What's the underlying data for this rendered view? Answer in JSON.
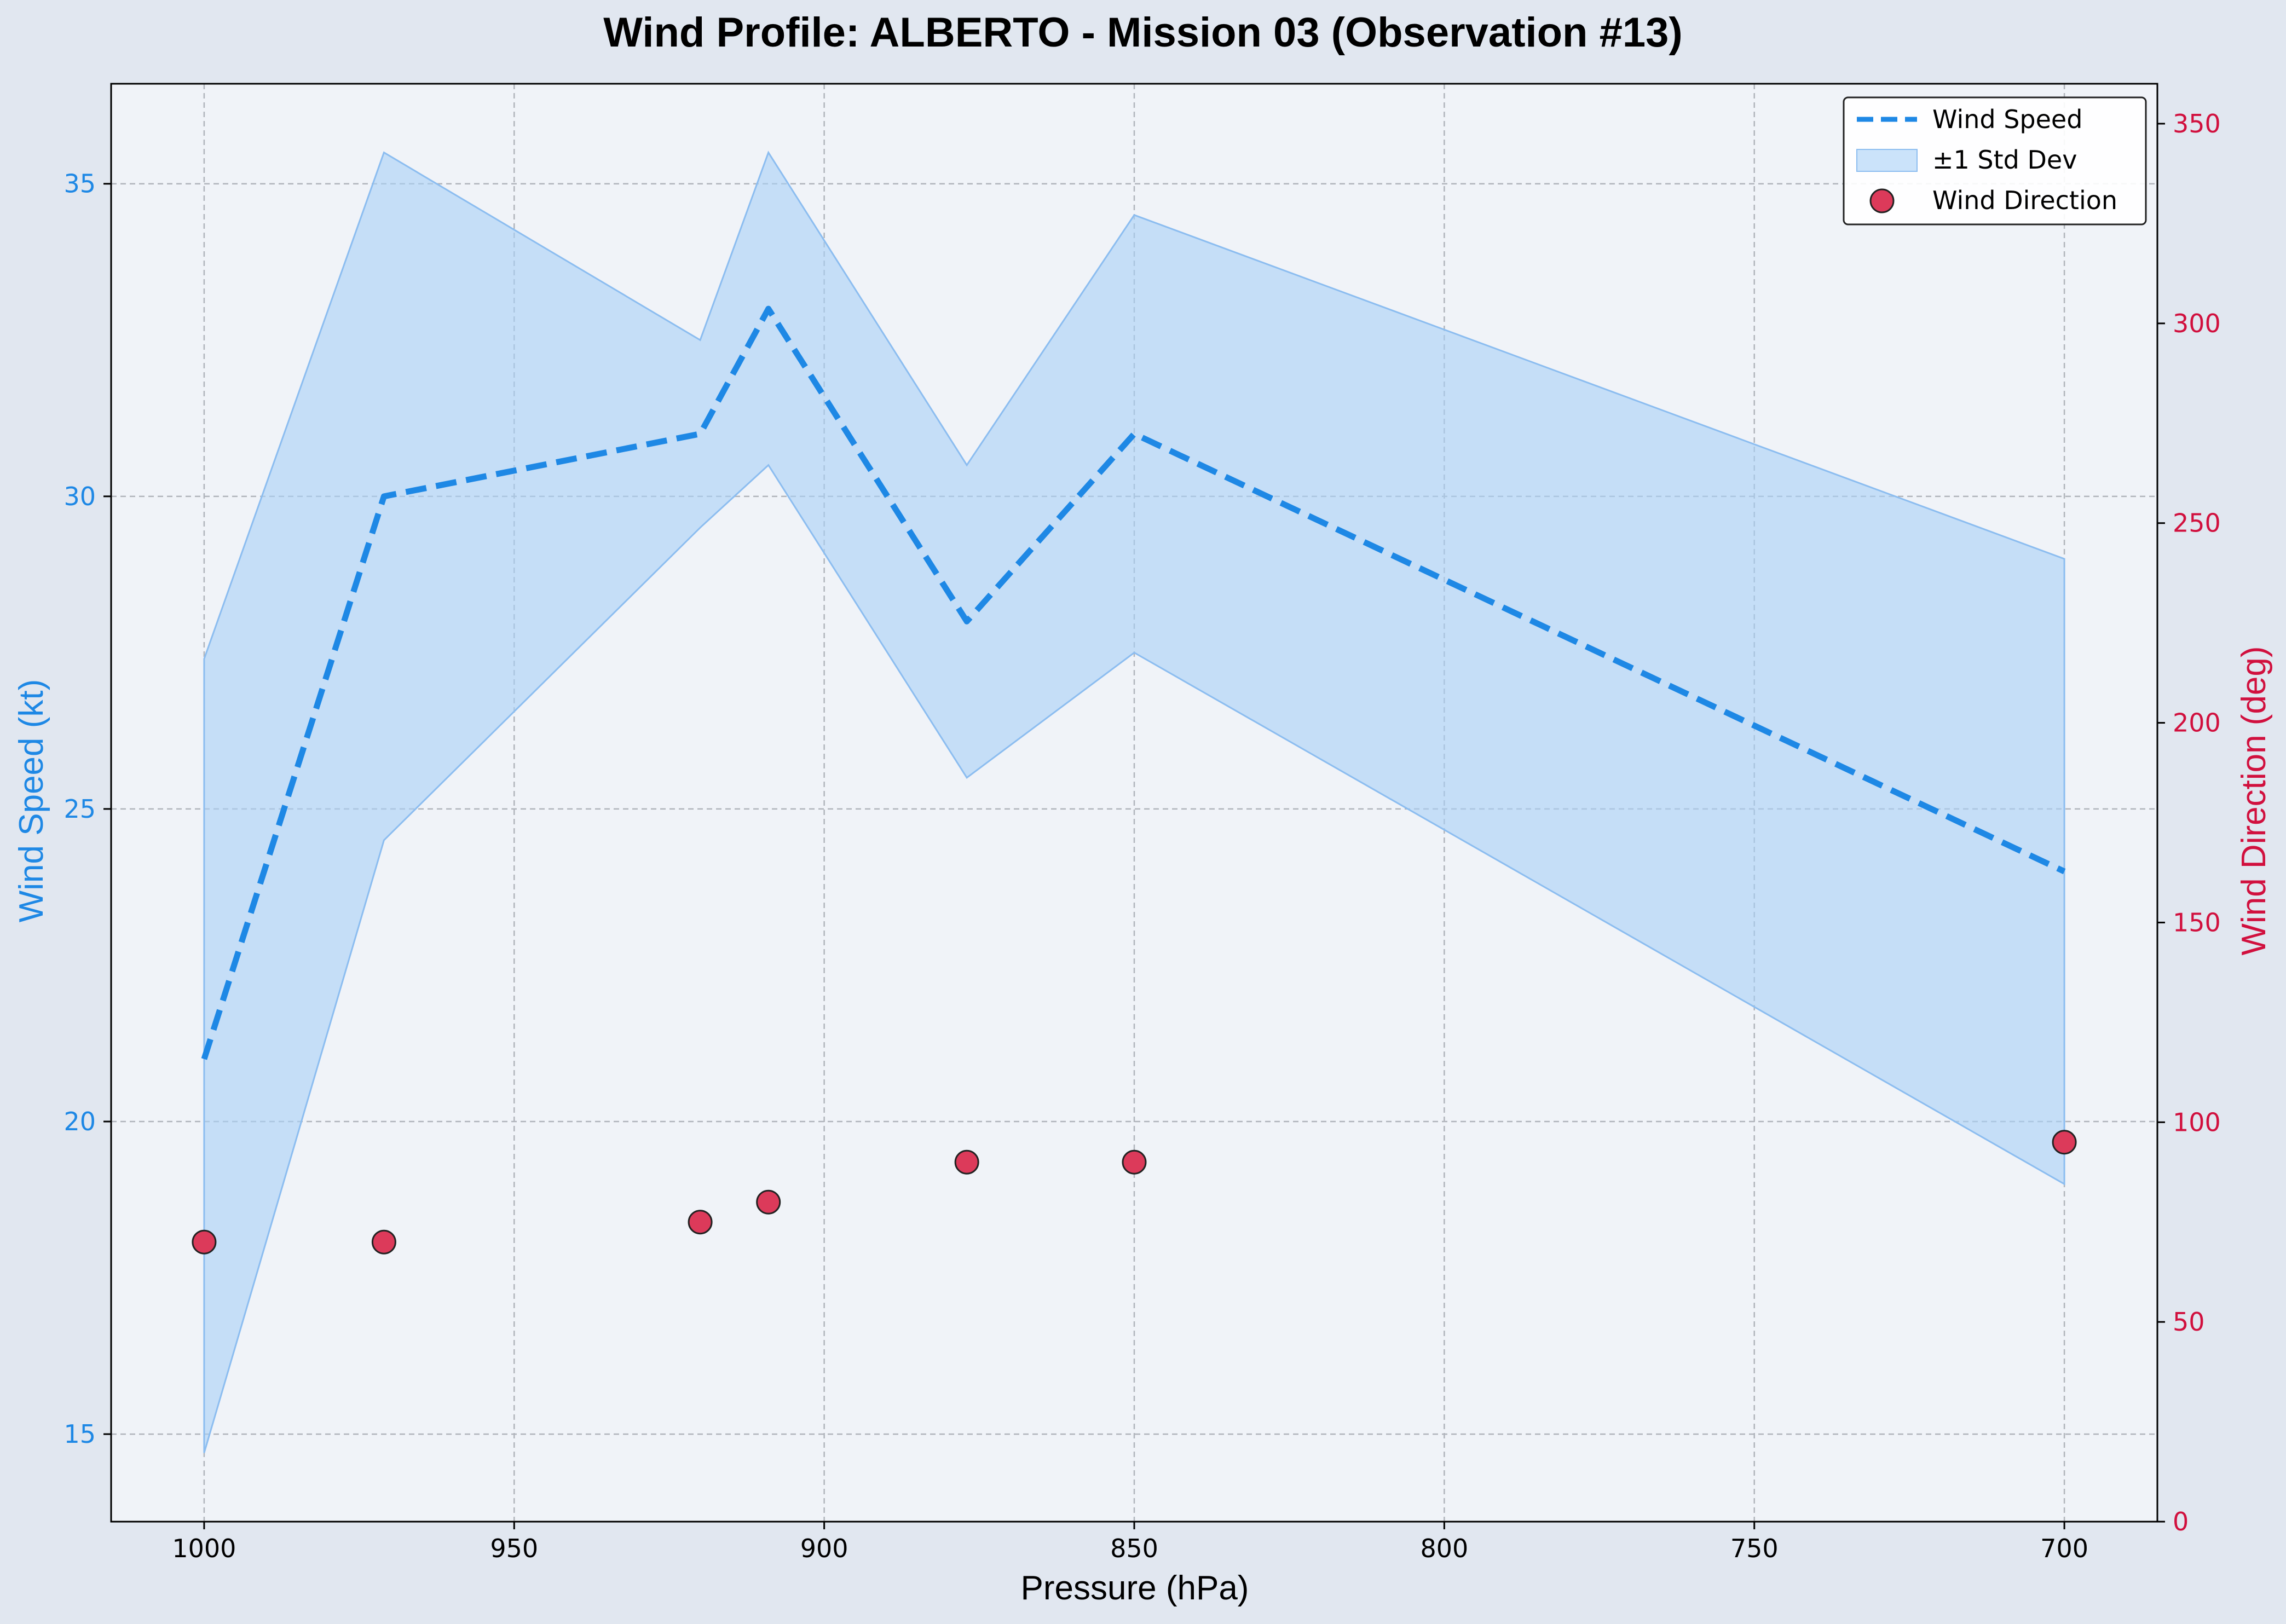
{
  "chart_data": {
    "type": "line",
    "title": "Wind Profile: ALBERTO - Mission 03 (Observation #13)",
    "xlabel": "Pressure (hPa)",
    "ylabel": "Wind Speed (kt)",
    "y2label": "Wind Direction (deg)",
    "xlim": [
      1015,
      685
    ],
    "x_reversed": true,
    "ylim": [
      13.6,
      36.6
    ],
    "y2lim": [
      0,
      360
    ],
    "xticks": [
      1000,
      950,
      900,
      850,
      800,
      750,
      700
    ],
    "yticks": [
      15,
      20,
      25,
      30,
      35
    ],
    "y2ticks": [
      0,
      50,
      100,
      150,
      200,
      250,
      300,
      350
    ],
    "grid": true,
    "legend_position": "top-right",
    "x": [
      1000,
      971,
      920,
      909,
      877,
      850,
      700
    ],
    "series": [
      {
        "name": "Wind Speed",
        "kind": "line",
        "style": "dashed",
        "axis": "left",
        "color": "#1e88e5",
        "values": [
          21,
          30,
          31,
          33,
          28,
          31,
          24
        ]
      },
      {
        "name": "±1 Std Dev",
        "kind": "band",
        "axis": "left",
        "color": "#a8d0f7",
        "lower": [
          14.7,
          24.5,
          29.5,
          30.5,
          25.5,
          27.5,
          19.0
        ],
        "upper": [
          27.4,
          35.5,
          32.5,
          35.5,
          30.5,
          34.5,
          29.0
        ]
      },
      {
        "name": "Wind Direction",
        "kind": "scatter",
        "axis": "right",
        "color": "#dc3a5a",
        "values": [
          70,
          70,
          75,
          80,
          90,
          90,
          95
        ]
      }
    ],
    "colors": {
      "left_axis": "#1e88e5",
      "right_axis": "#d1103e",
      "plot_bg": "#f0f3f8",
      "fig_bg": "#e1e7f0"
    }
  }
}
